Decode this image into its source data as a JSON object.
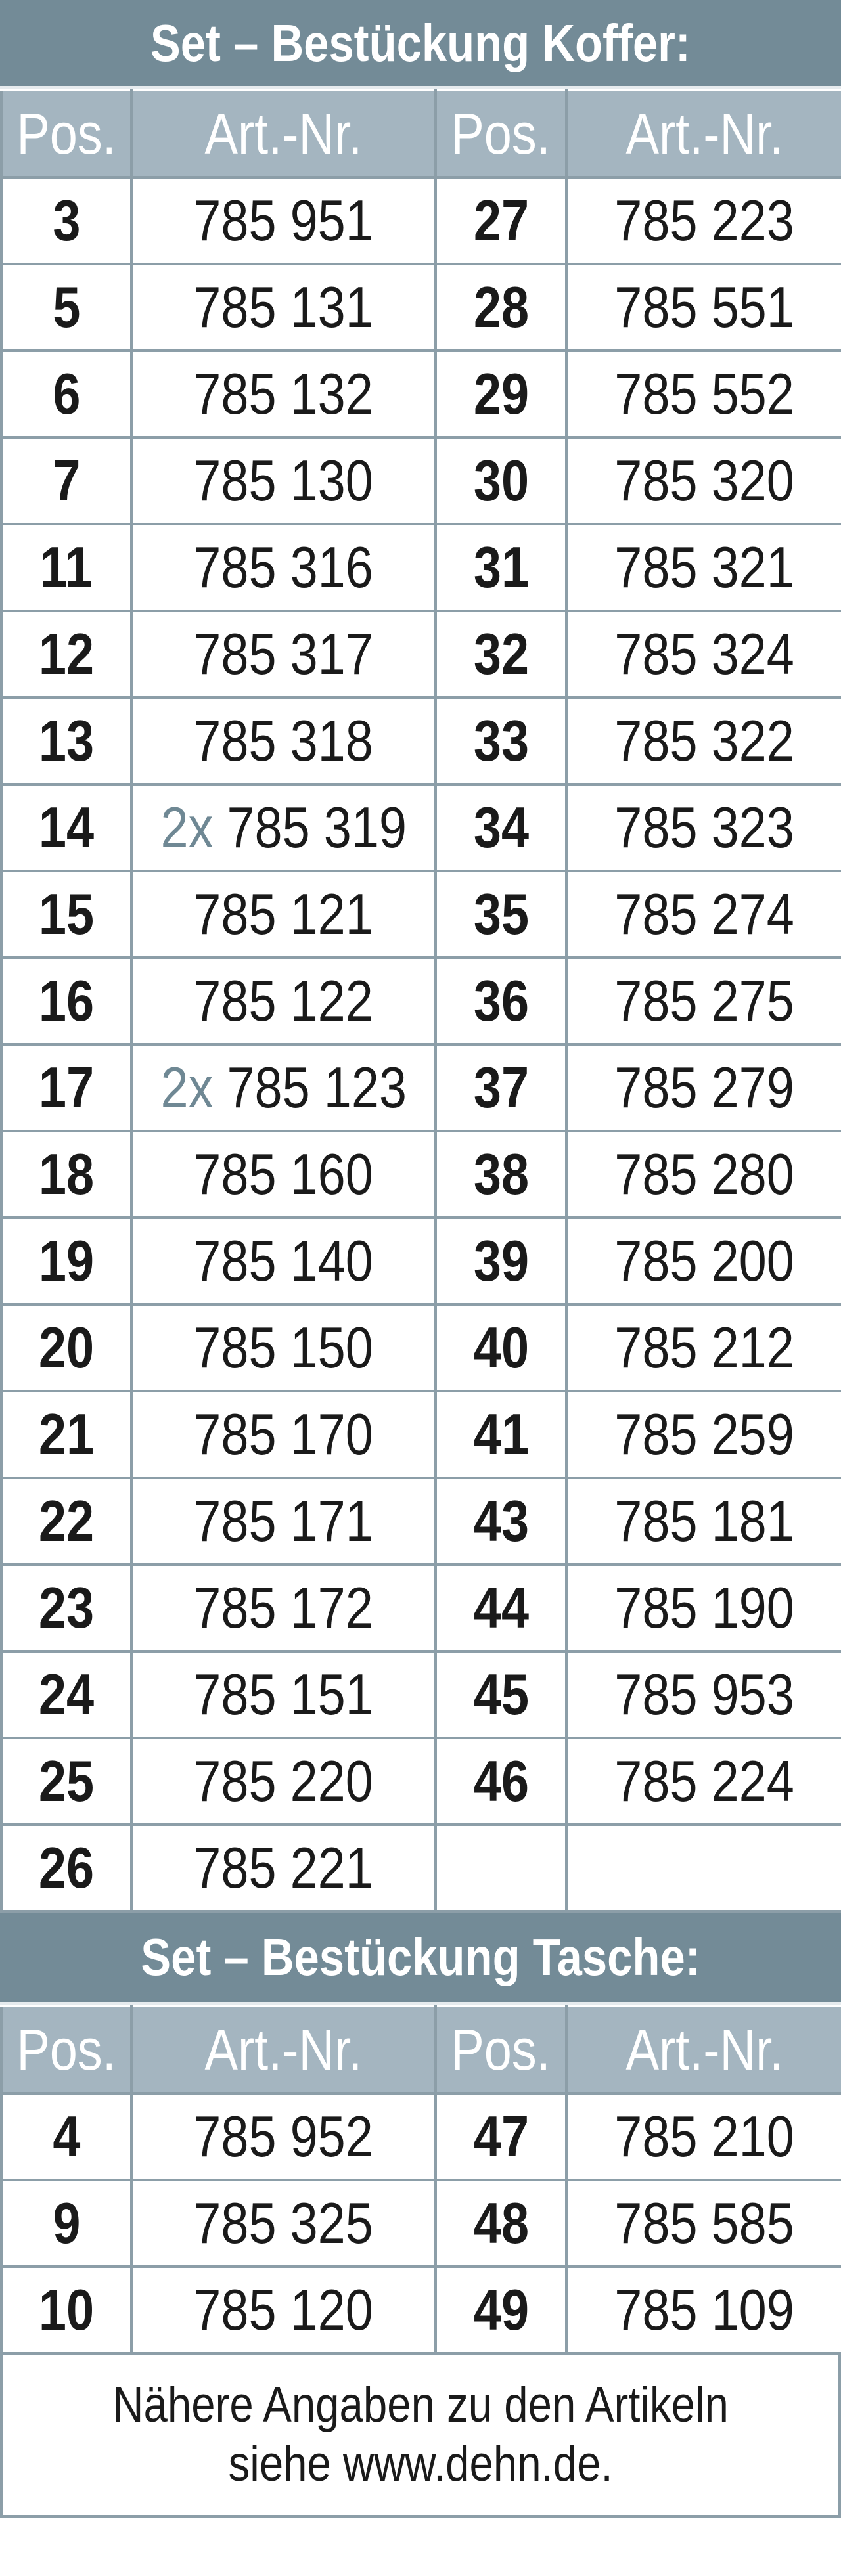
{
  "colors": {
    "title_band": "#738b97",
    "header_band": "#a4b5c0",
    "grid_line": "#8c9ea8",
    "quantity_text": "#6f8894"
  },
  "koffer": {
    "title": "Set – Bestückung Koffer:",
    "headers": [
      "Pos.",
      "Art.-Nr.",
      "Pos.",
      "Art.-Nr."
    ],
    "rows": [
      [
        {
          "pos": "3",
          "art": "785 951"
        },
        {
          "pos": "27",
          "art": "785 223"
        }
      ],
      [
        {
          "pos": "5",
          "art": "785 131"
        },
        {
          "pos": "28",
          "art": "785 551"
        }
      ],
      [
        {
          "pos": "6",
          "art": "785 132"
        },
        {
          "pos": "29",
          "art": "785 552"
        }
      ],
      [
        {
          "pos": "7",
          "art": "785 130"
        },
        {
          "pos": "30",
          "art": "785 320"
        }
      ],
      [
        {
          "pos": "11",
          "art": "785 316"
        },
        {
          "pos": "31",
          "art": "785 321"
        }
      ],
      [
        {
          "pos": "12",
          "art": "785 317"
        },
        {
          "pos": "32",
          "art": "785 324"
        }
      ],
      [
        {
          "pos": "13",
          "art": "785 318"
        },
        {
          "pos": "33",
          "art": "785 322"
        }
      ],
      [
        {
          "pos": "14",
          "qty": "2x",
          "art": "785 319"
        },
        {
          "pos": "34",
          "art": "785 323"
        }
      ],
      [
        {
          "pos": "15",
          "art": "785 121"
        },
        {
          "pos": "35",
          "art": "785 274"
        }
      ],
      [
        {
          "pos": "16",
          "art": "785 122"
        },
        {
          "pos": "36",
          "art": "785 275"
        }
      ],
      [
        {
          "pos": "17",
          "qty": "2x",
          "art": "785 123"
        },
        {
          "pos": "37",
          "art": "785 279"
        }
      ],
      [
        {
          "pos": "18",
          "art": "785 160"
        },
        {
          "pos": "38",
          "art": "785 280"
        }
      ],
      [
        {
          "pos": "19",
          "art": "785 140"
        },
        {
          "pos": "39",
          "art": "785 200"
        }
      ],
      [
        {
          "pos": "20",
          "art": "785 150"
        },
        {
          "pos": "40",
          "art": "785 212"
        }
      ],
      [
        {
          "pos": "21",
          "art": "785 170"
        },
        {
          "pos": "41",
          "art": "785 259"
        }
      ],
      [
        {
          "pos": "22",
          "art": "785 171"
        },
        {
          "pos": "43",
          "art": "785 181"
        }
      ],
      [
        {
          "pos": "23",
          "art": "785 172"
        },
        {
          "pos": "44",
          "art": "785 190"
        }
      ],
      [
        {
          "pos": "24",
          "art": "785 151"
        },
        {
          "pos": "45",
          "art": "785 953"
        }
      ],
      [
        {
          "pos": "25",
          "art": "785 220"
        },
        {
          "pos": "46",
          "art": "785 224"
        }
      ],
      [
        {
          "pos": "26",
          "art": "785 221"
        },
        null
      ]
    ]
  },
  "tasche": {
    "title": "Set – Bestückung Tasche:",
    "headers": [
      "Pos.",
      "Art.-Nr.",
      "Pos.",
      "Art.-Nr."
    ],
    "rows": [
      [
        {
          "pos": "4",
          "art": "785 952"
        },
        {
          "pos": "47",
          "art": "785 210"
        }
      ],
      [
        {
          "pos": "9",
          "art": "785 325"
        },
        {
          "pos": "48",
          "art": "785 585"
        }
      ],
      [
        {
          "pos": "10",
          "art": "785 120"
        },
        {
          "pos": "49",
          "art": "785 109"
        }
      ]
    ]
  },
  "footer": {
    "line1": "Nähere Angaben zu den Artikeln",
    "line2": "siehe www.dehn.de."
  }
}
